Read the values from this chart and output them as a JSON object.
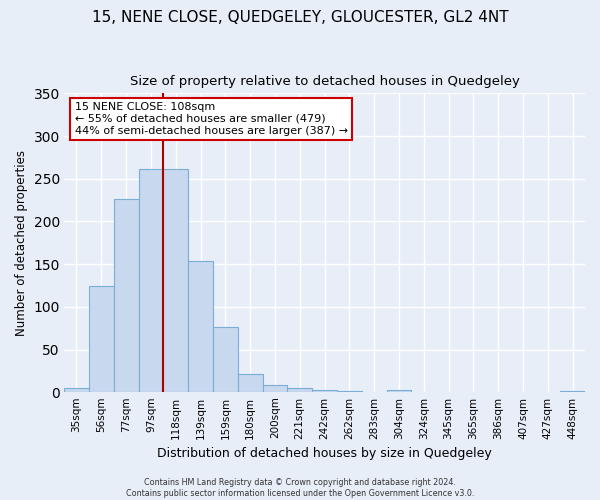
{
  "title": "15, NENE CLOSE, QUEDGELEY, GLOUCESTER, GL2 4NT",
  "subtitle": "Size of property relative to detached houses in Quedgeley",
  "xlabel": "Distribution of detached houses by size in Quedgeley",
  "ylabel": "Number of detached properties",
  "bar_labels": [
    "35sqm",
    "56sqm",
    "77sqm",
    "97sqm",
    "118sqm",
    "139sqm",
    "159sqm",
    "180sqm",
    "200sqm",
    "221sqm",
    "242sqm",
    "262sqm",
    "283sqm",
    "304sqm",
    "324sqm",
    "345sqm",
    "365sqm",
    "386sqm",
    "407sqm",
    "427sqm",
    "448sqm"
  ],
  "bar_values": [
    5,
    124,
    226,
    261,
    261,
    154,
    77,
    21,
    9,
    5,
    3,
    2,
    0,
    3,
    0,
    0,
    0,
    0,
    0,
    0,
    2
  ],
  "bar_color": "#c8d8ee",
  "bar_edge_color": "#7aaed6",
  "vline_color": "#aa0000",
  "vline_pos": 3.5,
  "annotation_title": "15 NENE CLOSE: 108sqm",
  "annotation_line1": "← 55% of detached houses are smaller (479)",
  "annotation_line2": "44% of semi-detached houses are larger (387) →",
  "annotation_box_color": "#ffffff",
  "annotation_box_edge": "#cc0000",
  "ylim": [
    0,
    350
  ],
  "yticks": [
    0,
    50,
    100,
    150,
    200,
    250,
    300,
    350
  ],
  "footer1": "Contains HM Land Registry data © Crown copyright and database right 2024.",
  "footer2": "Contains public sector information licensed under the Open Government Licence v3.0.",
  "background_color": "#e8eef8",
  "grid_color": "#ffffff",
  "title_fontsize": 11,
  "subtitle_fontsize": 9.5,
  "tick_fontsize": 7.5,
  "ylabel_fontsize": 8.5,
  "xlabel_fontsize": 9
}
